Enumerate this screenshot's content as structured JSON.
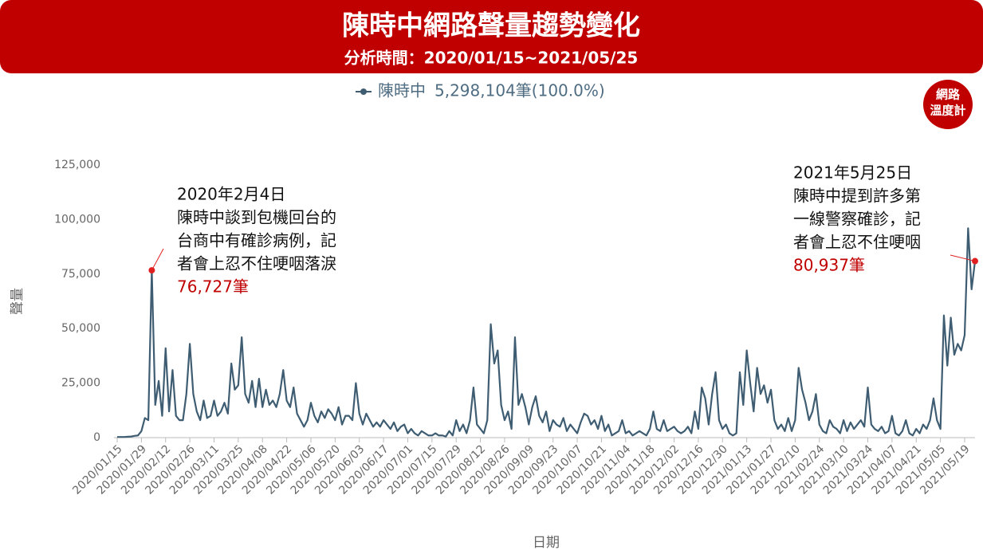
{
  "chart_data": {
    "type": "line",
    "title": "陳時中網路聲量趨勢變化",
    "subtitle": "分析時間：2020/01/15~2021/05/25",
    "logo": [
      "網路",
      "溫度計"
    ],
    "y_label": "聲量",
    "x_label": "日期",
    "legend_total": "5,298,104筆(100.0%)",
    "ylim": [
      0,
      125000
    ],
    "yticks": [
      0,
      {
        "value": 25000,
        "label": "25,000"
      },
      {
        "value": 50000,
        "label": "50,000"
      },
      {
        "value": 75000,
        "label": "75,000"
      },
      {
        "value": 100000,
        "label": "100,000"
      },
      {
        "value": 125000,
        "label": "125,000"
      }
    ],
    "grid": false,
    "categories": [
      "2020/01/15",
      null,
      null,
      null,
      null,
      null,
      null,
      "2020/01/29",
      null,
      null,
      null,
      null,
      null,
      null,
      "2020/02/12",
      null,
      null,
      null,
      null,
      null,
      null,
      "2020/02/26",
      null,
      null,
      null,
      null,
      null,
      null,
      "2020/03/11",
      null,
      null,
      null,
      null,
      null,
      null,
      "2020/03/25",
      null,
      null,
      null,
      null,
      null,
      null,
      "2020/04/08",
      null,
      null,
      null,
      null,
      null,
      null,
      "2020/04/22",
      null,
      null,
      null,
      null,
      null,
      null,
      "2020/05/06",
      null,
      null,
      null,
      null,
      null,
      null,
      "2020/05/20",
      null,
      null,
      null,
      null,
      null,
      null,
      "2020/06/03",
      null,
      null,
      null,
      null,
      null,
      null,
      "2020/06/17",
      null,
      null,
      null,
      null,
      null,
      null,
      "2020/07/01",
      null,
      null,
      null,
      null,
      null,
      null,
      "2020/07/15",
      null,
      null,
      null,
      null,
      null,
      null,
      "2020/07/29",
      null,
      null,
      null,
      null,
      null,
      null,
      "2020/08/12",
      null,
      null,
      null,
      null,
      null,
      null,
      "2020/08/26",
      null,
      null,
      null,
      null,
      null,
      null,
      "2020/09/09",
      null,
      null,
      null,
      null,
      null,
      null,
      "2020/09/23",
      null,
      null,
      null,
      null,
      null,
      null,
      "2020/10/07",
      null,
      null,
      null,
      null,
      null,
      null,
      "2020/10/21",
      null,
      null,
      null,
      null,
      null,
      null,
      "2020/11/04",
      null,
      null,
      null,
      null,
      null,
      null,
      "2020/11/18",
      null,
      null,
      null,
      null,
      null,
      null,
      "2020/12/02",
      null,
      null,
      null,
      null,
      null,
      null,
      "2020/12/16",
      null,
      null,
      null,
      null,
      null,
      null,
      "2020/12/30",
      null,
      null,
      null,
      null,
      null,
      null,
      "2021/01/13",
      null,
      null,
      null,
      null,
      null,
      null,
      "2021/01/27",
      null,
      null,
      null,
      null,
      null,
      null,
      "2021/02/10",
      null,
      null,
      null,
      null,
      null,
      null,
      "2021/02/24",
      null,
      null,
      null,
      null,
      null,
      null,
      "2021/03/10",
      null,
      null,
      null,
      null,
      null,
      null,
      "2021/03/24",
      null,
      null,
      null,
      null,
      null,
      null,
      "2021/04/07",
      null,
      null,
      null,
      null,
      null,
      null,
      "2021/04/21",
      null,
      null,
      null,
      null,
      null,
      null,
      "2021/05/05",
      null,
      null,
      null,
      null,
      null,
      null,
      "2021/05/19",
      null,
      null,
      null
    ],
    "series": [
      {
        "name": "陳時中",
        "color": "#3f5d72",
        "values": [
          300,
          300,
          300,
          400,
          500,
          800,
          1000,
          3000,
          9000,
          8000,
          76727,
          15000,
          26000,
          10000,
          41000,
          12000,
          31000,
          10000,
          8000,
          8000,
          20000,
          43000,
          20000,
          12000,
          8000,
          17000,
          9000,
          10000,
          17000,
          10000,
          12000,
          16000,
          11000,
          34000,
          22000,
          24000,
          46000,
          20000,
          16000,
          26000,
          14000,
          27000,
          14000,
          22000,
          15000,
          17000,
          14000,
          20000,
          31000,
          17000,
          14000,
          23000,
          11000,
          8000,
          5000,
          8000,
          16000,
          10000,
          7000,
          12000,
          9000,
          13000,
          11000,
          8000,
          14000,
          6000,
          10000,
          10000,
          8000,
          25000,
          11000,
          6000,
          11000,
          8000,
          5000,
          7000,
          5000,
          8000,
          6000,
          4000,
          7000,
          3000,
          5000,
          6000,
          2000,
          4000,
          2000,
          1000,
          3000,
          2000,
          1000,
          1000,
          2000,
          1000,
          1000,
          500,
          3000,
          1000,
          8000,
          3000,
          6000,
          2000,
          8000,
          23000,
          6000,
          4000,
          2000,
          8000,
          52000,
          34000,
          40000,
          15000,
          8000,
          12000,
          4000,
          46000,
          15000,
          20000,
          14000,
          6000,
          14000,
          19000,
          10000,
          7000,
          12000,
          3000,
          8000,
          6000,
          5000,
          9000,
          3000,
          6000,
          4000,
          2000,
          7000,
          11000,
          10000,
          6000,
          8000,
          4000,
          10000,
          3000,
          6000,
          1000,
          2000,
          3000,
          8000,
          2000,
          3000,
          1000,
          2000,
          3000,
          2000,
          1000,
          4000,
          12000,
          4000,
          3000,
          8000,
          3000,
          4000,
          5000,
          3000,
          2000,
          3000,
          5000,
          2000,
          12000,
          4000,
          23000,
          18000,
          6000,
          20000,
          30000,
          8000,
          4000,
          6000,
          2000,
          1000,
          2000,
          30000,
          15000,
          40000,
          25000,
          12000,
          32000,
          20000,
          24000,
          16000,
          22000,
          8000,
          4000,
          6000,
          3000,
          9000,
          3000,
          8000,
          32000,
          22000,
          16000,
          8000,
          12000,
          20000,
          6000,
          3000,
          2000,
          8000,
          5000,
          4000,
          2000,
          8000,
          3000,
          7000,
          4000,
          6000,
          8000,
          5000,
          23000,
          6000,
          4000,
          3000,
          5000,
          2000,
          3000,
          10000,
          2000,
          1000,
          3000,
          8000,
          2000,
          1000,
          4000,
          2000,
          6000,
          4000,
          8000,
          18000,
          8000,
          4000,
          56000,
          33000,
          55000,
          38000,
          43000,
          40000,
          47000,
          96000,
          68000,
          80937
        ]
      }
    ],
    "annotations": [
      {
        "lines": [
          "2020年2月4日",
          "陳時中談到包機回台的",
          "台商中有確診病例，記",
          "者會上忍不住哽咽落淚"
        ],
        "label": "76,727筆"
      },
      {
        "lines": [
          "2021年5月25日",
          "陳時中提到許多第",
          "一線警察確診，記",
          "者會上忍不住哽咽"
        ],
        "label": "80,937筆"
      }
    ]
  }
}
